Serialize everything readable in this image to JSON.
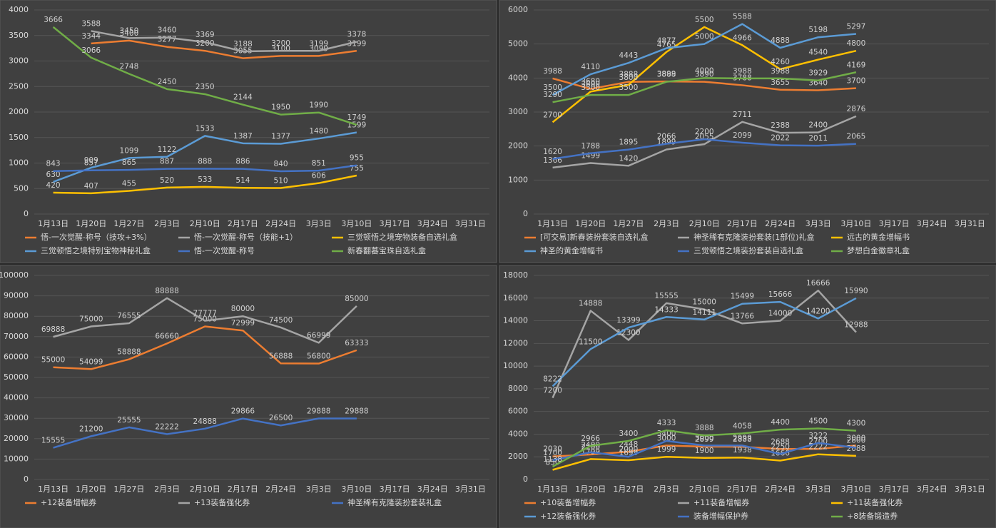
{
  "chart_data": [
    {
      "type": "line",
      "categories": [
        "1月13日",
        "1月20日",
        "1月27日",
        "2月3日",
        "2月10日",
        "2月17日",
        "2月24日",
        "3月3日",
        "3月10日",
        "3月17日",
        "3月24日",
        "3月31日"
      ],
      "ylim": [
        0,
        4000
      ],
      "yticks": [
        0,
        500,
        1000,
        1500,
        2000,
        2500,
        3000,
        3500,
        4000
      ],
      "grid": true,
      "series": [
        {
          "name": "悟-一次觉醒-称号（技攻+3%）",
          "color": "#ed7d31",
          "values": [
            null,
            3344,
            3400,
            3277,
            3200,
            3055,
            3100,
            3099,
            3199,
            null,
            null,
            null
          ]
        },
        {
          "name": "悟-一次觉醒-称号（技能+1）",
          "color": "#a5a5a5",
          "values": [
            null,
            3588,
            3450,
            3460,
            3369,
            3188,
            3200,
            3199,
            3378,
            null,
            null,
            null
          ]
        },
        {
          "name": "三觉顿悟之境宠物装备自选礼盒",
          "color": "#ffc000",
          "values": [
            420,
            407,
            455,
            520,
            533,
            514,
            510,
            606,
            755,
            null,
            null,
            null
          ]
        },
        {
          "name": "三觉顿悟之境特别宝物神秘礼盒",
          "color": "#5b9bd5",
          "values": [
            630,
            909,
            1099,
            1122,
            1533,
            1387,
            1377,
            1480,
            1599,
            null,
            null,
            null
          ]
        },
        {
          "name": "悟-一次觉醒-称号",
          "color": "#4472c4",
          "values": [
            843,
            857,
            865,
            887,
            888,
            886,
            840,
            851,
            955,
            null,
            null,
            null
          ]
        },
        {
          "name": "新春翻蕃宝珠自选礼盒",
          "color": "#70ad47",
          "values": [
            3666,
            3066,
            2748,
            2450,
            2350,
            2144,
            1950,
            1990,
            1749,
            null,
            null,
            null
          ]
        }
      ]
    },
    {
      "type": "line",
      "categories": [
        "1月13日",
        "1月20日",
        "1月27日",
        "2月3日",
        "2月10日",
        "2月17日",
        "2月24日",
        "3月3日",
        "3月10日",
        "3月17日",
        "3月24日",
        "3月31日"
      ],
      "ylim": [
        0,
        6000
      ],
      "yticks": [
        0,
        1000,
        2000,
        3000,
        4000,
        5000,
        6000
      ],
      "grid": true,
      "series": [
        {
          "name": "[可交易]新春装扮套装自选礼盒",
          "color": "#ed7d31",
          "values": [
            3988,
            3680,
            3888,
            3899,
            3890,
            3788,
            3655,
            3640,
            3700,
            null,
            null,
            null
          ]
        },
        {
          "name": "神圣稀有克隆装扮套装(1部位)礼盒",
          "color": "#a5a5a5",
          "values": [
            1366,
            1499,
            1420,
            1899,
            2055,
            2711,
            2388,
            2400,
            2876,
            null,
            null,
            null
          ]
        },
        {
          "name": "远古的黄金增幅书",
          "color": "#ffc000",
          "values": [
            2700,
            3600,
            3800,
            4765,
            5500,
            4966,
            4260,
            4540,
            4800,
            null,
            null,
            null
          ]
        },
        {
          "name": "神圣的黄金增幅书",
          "color": "#5b9bd5",
          "values": [
            3500,
            4110,
            4443,
            4877,
            5000,
            5588,
            4888,
            5198,
            5297,
            null,
            null,
            null
          ]
        },
        {
          "name": "三觉顿悟之境装扮套装自选礼盒",
          "color": "#4472c4",
          "values": [
            1620,
            1788,
            1895,
            2066,
            2200,
            2099,
            2022,
            2011,
            2065,
            null,
            null,
            null
          ]
        },
        {
          "name": "梦想白金徽章礼盒",
          "color": "#70ad47",
          "values": [
            3290,
            3500,
            3500,
            3888,
            4000,
            3988,
            3988,
            3929,
            4169,
            null,
            null,
            null
          ]
        }
      ]
    },
    {
      "type": "line",
      "categories": [
        "1月13日",
        "1月20日",
        "1月27日",
        "2月3日",
        "2月10日",
        "2月17日",
        "2月24日",
        "3月3日",
        "3月10日",
        "3月17日",
        "3月24日",
        "3月31日"
      ],
      "ylim": [
        0,
        100000
      ],
      "yticks": [
        0,
        10000,
        20000,
        30000,
        40000,
        50000,
        60000,
        70000,
        80000,
        90000,
        100000
      ],
      "grid": true,
      "series": [
        {
          "name": "+12装备增幅券",
          "color": "#ed7d31",
          "values": [
            55000,
            54099,
            58888,
            66660,
            75000,
            72999,
            56888,
            56800,
            63333,
            null,
            null,
            null
          ]
        },
        {
          "name": "+13装备强化券",
          "color": "#a5a5a5",
          "values": [
            69888,
            75000,
            76555,
            88888,
            77777,
            80000,
            74500,
            66999,
            85000,
            null,
            null,
            null
          ]
        },
        {
          "name": "神圣稀有克隆装扮套装礼盒",
          "color": "#4472c4",
          "values": [
            15555,
            21200,
            25555,
            22222,
            24888,
            29866,
            26500,
            29888,
            29888,
            null,
            null,
            null
          ]
        }
      ]
    },
    {
      "type": "line",
      "categories": [
        "1月13日",
        "1月20日",
        "1月27日",
        "2月3日",
        "2月10日",
        "2月17日",
        "2月24日",
        "3月3日",
        "3月10日",
        "3月17日",
        "3月24日",
        "3月31日"
      ],
      "ylim": [
        0,
        18000
      ],
      "yticks": [
        0,
        2000,
        4000,
        6000,
        8000,
        10000,
        12000,
        14000,
        16000,
        18000
      ],
      "grid": true,
      "series": [
        {
          "name": "+10装备增幅券",
          "color": "#ed7d31",
          "values": [
            2030,
            2200,
            2448,
            3000,
            2899,
            2888,
            2688,
            2700,
            3000,
            null,
            null,
            null
          ]
        },
        {
          "name": "+11装备增幅券",
          "color": "#a5a5a5",
          "values": [
            7200,
            14888,
            12300,
            15555,
            15000,
            13766,
            14000,
            16666,
            12988,
            null,
            null,
            null
          ]
        },
        {
          "name": "+11装备强化券",
          "color": "#ffc000",
          "values": [
            850,
            1799,
            1699,
            1999,
            1900,
            1938,
            1666,
            2222,
            2088,
            null,
            null,
            null
          ]
        },
        {
          "name": "+12装备强化券",
          "color": "#5b9bd5",
          "values": [
            8222,
            11500,
            13399,
            14333,
            14111,
            15499,
            15666,
            14200,
            15990,
            null,
            null,
            null
          ]
        },
        {
          "name": "装备增幅保护券",
          "color": "#4472c4",
          "values": [
            1700,
            2400,
            2000,
            3400,
            3000,
            2999,
            2250,
            3222,
            2800,
            null,
            null,
            null
          ]
        },
        {
          "name": "+8装备锻造券",
          "color": "#70ad47",
          "values": [
            1138,
            2966,
            3400,
            4333,
            3888,
            4058,
            4400,
            4500,
            4300,
            null,
            null,
            null
          ]
        }
      ]
    }
  ]
}
